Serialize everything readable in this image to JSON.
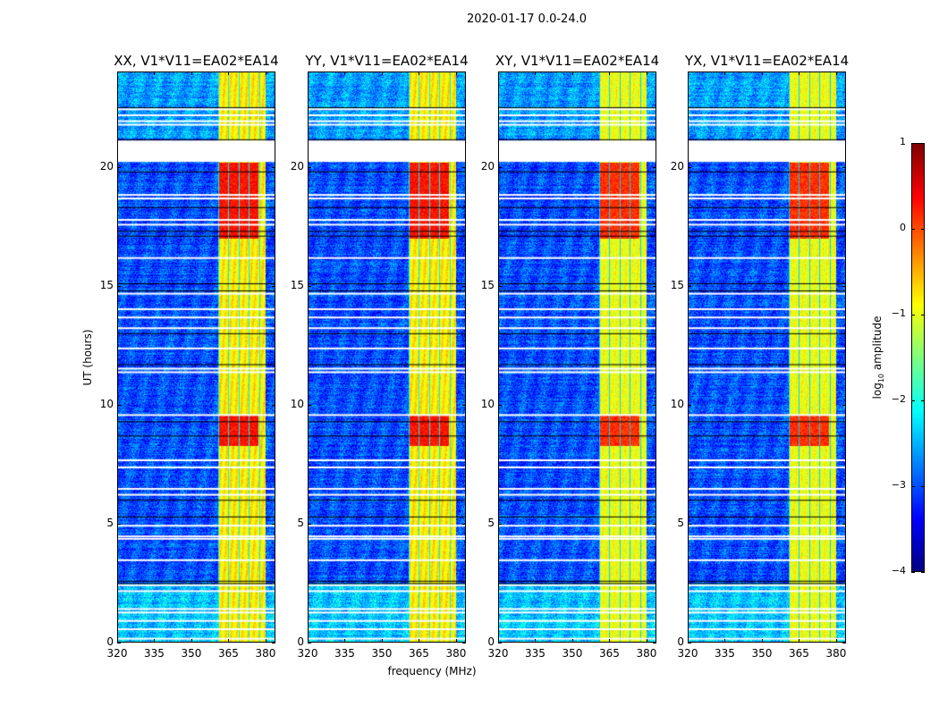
{
  "chart_data": {
    "type": "heatmap",
    "title": "2020-01-17 0.0-24.0",
    "xlabel": "frequency (MHz)",
    "ylabel": "UT (hours)",
    "xlim": [
      320,
      384
    ],
    "ylim": [
      0,
      24
    ],
    "xticks": [
      "320",
      "335",
      "350",
      "365",
      "380"
    ],
    "xtick_values": [
      320,
      335,
      350,
      365,
      380
    ],
    "yticks": [
      "0",
      "5",
      "10",
      "15",
      "20"
    ],
    "ytick_values": [
      0,
      5,
      10,
      15,
      20
    ],
    "colorbar": {
      "label_prefix": "log",
      "label_sub": "10",
      "label_suffix": " amplitude",
      "colormap": "jet",
      "range": [
        -4,
        1
      ],
      "ticks": [
        "1",
        "0",
        "−1",
        "−2",
        "−3",
        "−4"
      ],
      "tick_values": [
        1,
        0,
        -1,
        -2,
        -3,
        -4
      ]
    },
    "panels": [
      {
        "title": "XX, V1*V11=EA02*EA14"
      },
      {
        "title": "YY, V1*V11=EA02*EA14"
      },
      {
        "title": "XY, V1*V11=EA02*EA14"
      },
      {
        "title": "YX, V1*V11=EA02*EA14"
      }
    ],
    "features": {
      "background_level": -3.0,
      "bright_band_mhz": [
        360.5,
        380
      ],
      "bright_band_level": -0.8,
      "strong_periods_hours": [
        [
          17.0,
          20.2
        ],
        [
          8.3,
          9.6
        ]
      ],
      "strong_level": 0.3,
      "flagged_gap_hours": [
        20.2,
        21.1
      ],
      "flagged_lines_hours": [
        22.45,
        22.2,
        21.95,
        21.8,
        18.85,
        18.7,
        17.8,
        17.6,
        16.2,
        14.7,
        14.05,
        13.7,
        13.25,
        12.4,
        11.55,
        11.4,
        9.6,
        7.7,
        7.4,
        6.5,
        6.25,
        4.95,
        4.5,
        4.4,
        3.5,
        2.45,
        2.2,
        1.45,
        1.3,
        0.95,
        0.6,
        0.2
      ],
      "dark_lines_hours": [
        22.5,
        21.15,
        19.8,
        18.3,
        17.3,
        17.1,
        15.1,
        14.8,
        13.0,
        11.7,
        9.3,
        8.7,
        6.0,
        5.3,
        2.6,
        2.5
      ]
    }
  }
}
